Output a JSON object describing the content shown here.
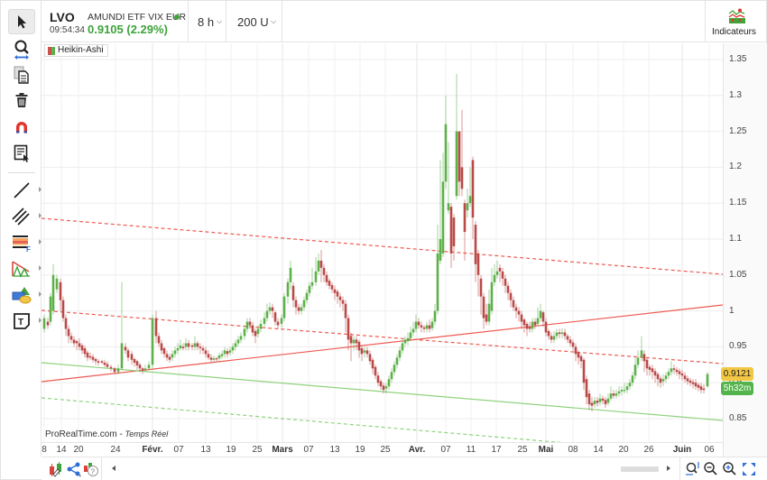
{
  "header": {
    "symbol": "LVO",
    "instrument_name": "AMUNDI ETF VIX EUR",
    "time": "09:54:34",
    "price_change": "0.9105 (2.29%)",
    "interval": "8 h",
    "units": "200 U",
    "indicators_label": "Indicateurs"
  },
  "chart": {
    "style_tag": "Heikin-Ashi",
    "watermark_brand": "ProRealTime.com",
    "watermark_sep": " - ",
    "watermark_mode": "Temps Réel",
    "last_price": "0.9121",
    "time_to_close": "5h32m",
    "colors": {
      "up": "#5db04a",
      "down": "#b94a48",
      "resistance_line": "#ee5a52",
      "support_line": "#8fd37e",
      "price_badge": "#f2c744",
      "timer_badge": "#55b34c"
    }
  },
  "y_axis": {
    "labels": [
      "1.35",
      "1.3",
      "1.25",
      "1.2",
      "1.15",
      "1.1",
      "1.05",
      "1",
      "0.95",
      "0.9",
      "0.85"
    ]
  },
  "x_axis": {
    "labels": [
      {
        "text": "8",
        "month": false
      },
      {
        "text": "14",
        "month": false
      },
      {
        "text": "20",
        "month": false
      },
      {
        "text": "24",
        "month": false
      },
      {
        "text": "Févr.",
        "month": true
      },
      {
        "text": "07",
        "month": false
      },
      {
        "text": "13",
        "month": false
      },
      {
        "text": "19",
        "month": false
      },
      {
        "text": "25",
        "month": false
      },
      {
        "text": "Mars",
        "month": true
      },
      {
        "text": "07",
        "month": false
      },
      {
        "text": "13",
        "month": false
      },
      {
        "text": "19",
        "month": false
      },
      {
        "text": "25",
        "month": false
      },
      {
        "text": "Avr.",
        "month": true
      },
      {
        "text": "07",
        "month": false
      },
      {
        "text": "11",
        "month": false
      },
      {
        "text": "17",
        "month": false
      },
      {
        "text": "25",
        "month": false
      },
      {
        "text": "Mai",
        "month": true
      },
      {
        "text": "08",
        "month": false
      },
      {
        "text": "14",
        "month": false
      },
      {
        "text": "20",
        "month": false
      },
      {
        "text": "26",
        "month": false
      },
      {
        "text": "Juin",
        "month": true
      },
      {
        "text": "06",
        "month": false
      }
    ]
  },
  "toolbar": {
    "tools": [
      {
        "name": "pointer-tool",
        "icon": "cursor-arrow"
      },
      {
        "name": "zoom-tool",
        "icon": "magnifier-horizontal"
      },
      {
        "name": "copy-tool",
        "icon": "duplicate-documents"
      },
      {
        "name": "delete-tool",
        "icon": "trash-can"
      },
      {
        "name": "magnet-tool",
        "icon": "magnet"
      },
      {
        "name": "object-list-tool",
        "icon": "list-cursor"
      },
      {
        "name": "line-tool",
        "icon": "diagonal-line"
      },
      {
        "name": "parallel-lines-tool",
        "icon": "parallel-lines"
      },
      {
        "name": "fibonacci-tool",
        "icon": "fibonacci-retracement"
      },
      {
        "name": "pattern-tool",
        "icon": "triangle-pattern"
      },
      {
        "name": "shapes-tool",
        "icon": "shapes"
      },
      {
        "name": "text-tool",
        "icon": "text-box"
      }
    ]
  },
  "bottom_bar": {
    "icons": [
      "trading-icon",
      "share-icon",
      "help-icon",
      "auto-scale-icon",
      "zoom-out-icon",
      "zoom-in-icon",
      "fullscreen-icon"
    ]
  }
}
